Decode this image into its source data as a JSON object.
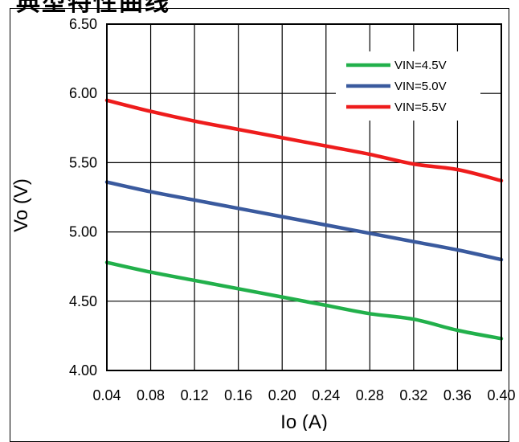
{
  "heading_fragment": "典型特性曲线",
  "chart_data": {
    "type": "line",
    "title": "",
    "xlabel": "Io (A)",
    "ylabel": "Vo (V)",
    "xlim": [
      0.04,
      0.4
    ],
    "ylim": [
      4.0,
      6.5
    ],
    "x_ticks": [
      "0.04",
      "0.08",
      "0.12",
      "0.16",
      "0.20",
      "0.24",
      "0.28",
      "0.32",
      "0.36",
      "0.40"
    ],
    "y_ticks": [
      "4.00",
      "4.50",
      "5.00",
      "5.50",
      "6.00",
      "6.50"
    ],
    "grid": true,
    "legend_position": "top-right",
    "series": [
      {
        "name": "VIN=4.5V",
        "color": "#22b04b",
        "x": [
          0.04,
          0.08,
          0.12,
          0.16,
          0.2,
          0.24,
          0.28,
          0.32,
          0.36,
          0.4
        ],
        "y": [
          4.78,
          4.71,
          4.65,
          4.59,
          4.53,
          4.47,
          4.41,
          4.37,
          4.29,
          4.23
        ]
      },
      {
        "name": "VIN=5.0V",
        "color": "#3a5a9e",
        "x": [
          0.04,
          0.08,
          0.12,
          0.16,
          0.2,
          0.24,
          0.28,
          0.32,
          0.36,
          0.4
        ],
        "y": [
          5.36,
          5.29,
          5.23,
          5.17,
          5.11,
          5.05,
          4.99,
          4.93,
          4.87,
          4.8
        ]
      },
      {
        "name": "VIN=5.5V",
        "color": "#ee1c1c",
        "x": [
          0.04,
          0.08,
          0.12,
          0.16,
          0.2,
          0.24,
          0.28,
          0.32,
          0.36,
          0.4
        ],
        "y": [
          5.95,
          5.87,
          5.8,
          5.74,
          5.68,
          5.62,
          5.56,
          5.49,
          5.45,
          5.37
        ]
      }
    ]
  }
}
